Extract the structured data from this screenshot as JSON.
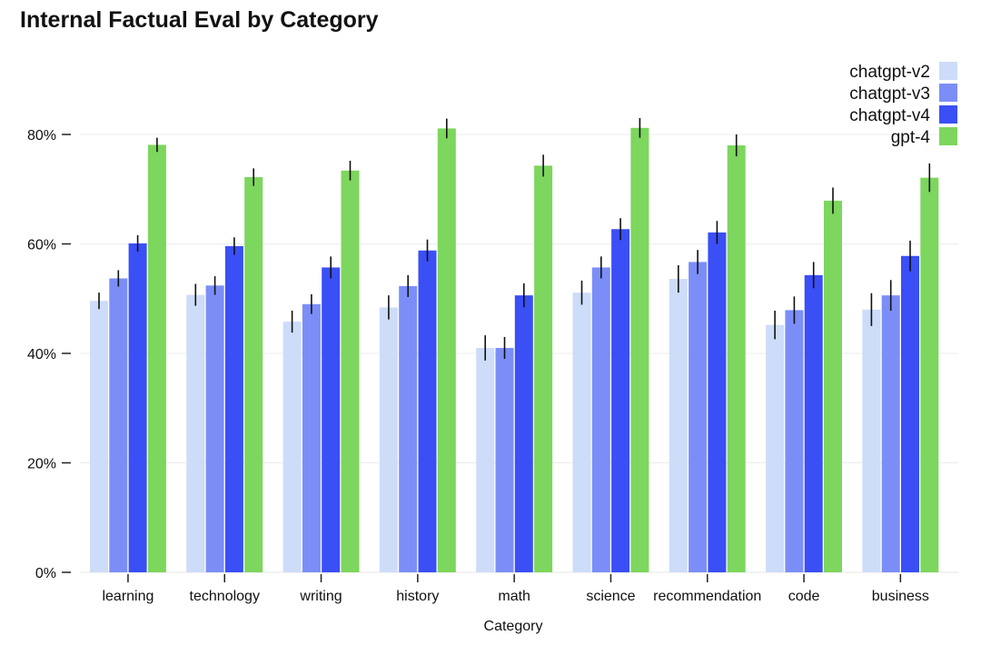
{
  "chart_data": {
    "type": "bar",
    "title": "Internal Factual Eval by Category",
    "xlabel": "Category",
    "ylabel": "",
    "ylim": [
      0,
      0.9
    ],
    "yticks": [
      0,
      0.2,
      0.4,
      0.6,
      0.8
    ],
    "ytick_labels": [
      "0%",
      "20%",
      "40%",
      "60%",
      "80%"
    ],
    "grid": true,
    "legend_position": "top-right",
    "categories": [
      "learning",
      "technology",
      "writing",
      "history",
      "math",
      "science",
      "recommendation",
      "code",
      "business"
    ],
    "series": [
      {
        "name": "chatgpt-v2",
        "color": "#cddcf8",
        "values": [
          0.496,
          0.507,
          0.458,
          0.484,
          0.41,
          0.511,
          0.536,
          0.452,
          0.48
        ],
        "errors": [
          0.015,
          0.02,
          0.02,
          0.022,
          0.023,
          0.022,
          0.025,
          0.026,
          0.03
        ]
      },
      {
        "name": "chatgpt-v3",
        "color": "#7b8ef8",
        "values": [
          0.537,
          0.524,
          0.49,
          0.523,
          0.41,
          0.557,
          0.567,
          0.479,
          0.506
        ],
        "errors": [
          0.015,
          0.017,
          0.018,
          0.02,
          0.02,
          0.02,
          0.022,
          0.025,
          0.028
        ]
      },
      {
        "name": "chatgpt-v4",
        "color": "#3a4ff5",
        "values": [
          0.601,
          0.596,
          0.557,
          0.588,
          0.506,
          0.627,
          0.621,
          0.543,
          0.578
        ],
        "errors": [
          0.015,
          0.016,
          0.02,
          0.02,
          0.022,
          0.02,
          0.021,
          0.024,
          0.028
        ]
      },
      {
        "name": "gpt-4",
        "color": "#7dd65d",
        "values": [
          0.781,
          0.722,
          0.734,
          0.811,
          0.743,
          0.812,
          0.78,
          0.679,
          0.721
        ],
        "errors": [
          0.013,
          0.016,
          0.018,
          0.018,
          0.02,
          0.018,
          0.02,
          0.024,
          0.026
        ]
      }
    ]
  }
}
